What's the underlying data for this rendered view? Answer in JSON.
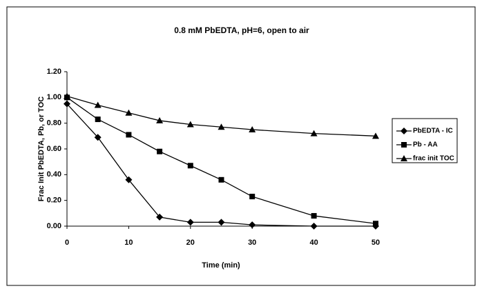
{
  "chart_data": {
    "type": "line",
    "title": "0.8 mM PbEDTA, pH=6, open to air",
    "xlabel": "Time (min)",
    "ylabel": "Frac Init PbEDTA, Pb, or TOC",
    "x": [
      0,
      5,
      10,
      15,
      20,
      25,
      30,
      40,
      50
    ],
    "series": [
      {
        "name": "PbEDTA - IC",
        "color": "#000000",
        "marker": "diamond",
        "values": [
          0.95,
          0.69,
          0.36,
          0.07,
          0.03,
          0.03,
          0.01,
          0.0,
          0.0
        ]
      },
      {
        "name": "Pb - AA",
        "color": "#000000",
        "marker": "square",
        "values": [
          1.0,
          0.83,
          0.71,
          0.58,
          0.47,
          0.36,
          0.23,
          0.08,
          0.02
        ]
      },
      {
        "name": "frac init TOC",
        "color": "#000000",
        "marker": "triangle",
        "values": [
          1.01,
          0.94,
          0.88,
          0.82,
          0.79,
          0.77,
          0.75,
          0.72,
          0.7
        ]
      }
    ],
    "xlim": [
      0,
      50
    ],
    "xticks": [
      0,
      10,
      20,
      30,
      40,
      50
    ],
    "ylim": [
      0,
      1.2
    ],
    "yticks": [
      {
        "value": 0,
        "label": "0.00"
      },
      {
        "value": 0.2,
        "label": "0.20"
      },
      {
        "value": 0.4,
        "label": "0.40"
      },
      {
        "value": 0.6,
        "label": "0.60"
      },
      {
        "value": 0.8,
        "label": "0.80"
      },
      {
        "value": 1.0,
        "label": "1.00"
      },
      {
        "value": 1.2,
        "label": "1.20"
      }
    ],
    "legend": "right"
  }
}
